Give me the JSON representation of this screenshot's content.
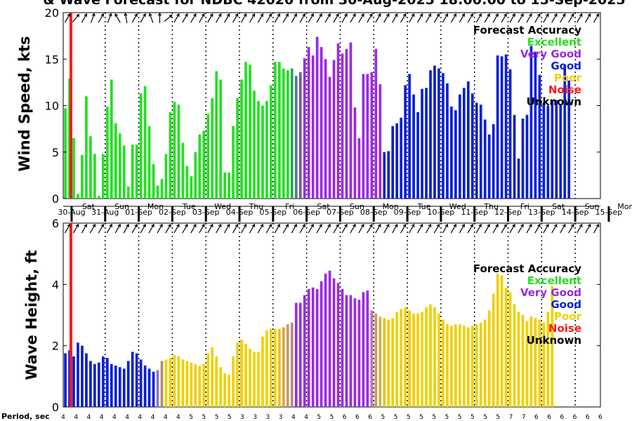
{
  "chart_data": {
    "title": "& Wave Forecast for NDBC 42020 from 30-Aug-2025 18:00:00 to 15-Sep-2025",
    "type": "bar",
    "x_start": "30-Aug-2025 18:00",
    "x_step_hours": 3,
    "days": [
      {
        "weekday": "Sat",
        "date": "30-Aug"
      },
      {
        "weekday": "Sun",
        "date": "31-Aug"
      },
      {
        "weekday": "Mon",
        "date": "01-Sep"
      },
      {
        "weekday": "Tue",
        "date": "02-Sep"
      },
      {
        "weekday": "Wed",
        "date": "03-Sep"
      },
      {
        "weekday": "Thu",
        "date": "04-Sep"
      },
      {
        "weekday": "Fri",
        "date": "05-Sep"
      },
      {
        "weekday": "Sat",
        "date": "06-Sep"
      },
      {
        "weekday": "Sun",
        "date": "07-Sep"
      },
      {
        "weekday": "Mon",
        "date": "08-Sep"
      },
      {
        "weekday": "Tue",
        "date": "09-Sep"
      },
      {
        "weekday": "Wed",
        "date": "10-Sep"
      },
      {
        "weekday": "Thu",
        "date": "11-Sep"
      },
      {
        "weekday": "Fri",
        "date": "12-Sep"
      },
      {
        "weekday": "Sat",
        "date": "13-Sep"
      },
      {
        "weekday": "Sun",
        "date": "14-Sep"
      },
      {
        "weekday": "Mon",
        "date": "15-Sep"
      }
    ],
    "noise_marker": "30-Aug-2025 21:00",
    "legend": {
      "title": "Forecast Accuracy",
      "items": [
        {
          "label": "Excellent",
          "color": "#22e022"
        },
        {
          "label": "Very Good",
          "color": "#9a2be0"
        },
        {
          "label": "Good",
          "color": "#0b1fd6"
        },
        {
          "label": "Poor",
          "color": "#f0d000"
        },
        {
          "label": "Noise",
          "color": "#ff1a1a"
        },
        {
          "label": "Unknown",
          "color": "#000000"
        }
      ]
    },
    "panels": [
      {
        "ylabel": "Wind Speed, kts",
        "ylim": [
          0,
          20
        ],
        "yticks": [
          0,
          5,
          10,
          15,
          20
        ],
        "segments": [
          {
            "category": "Excellent",
            "values": [
              9.7,
              12.9,
              6.5,
              0.5,
              4.7,
              11.0,
              6.7,
              4.8,
              0.3,
              4.8,
              9.9,
              12.8,
              8.1,
              7.0,
              5.7,
              1.3,
              5.8,
              5.8,
              11.3,
              12.1,
              7.8,
              3.7,
              1.4,
              2.1,
              4.8,
              9.3,
              10.4,
              10.1,
              6.0,
              3.5,
              2.4,
              5.0,
              6.9,
              7.3,
              9.1,
              10.8,
              13.7,
              12.8,
              2.8,
              2.8,
              7.8,
              10.8,
              12.8,
              14.7,
              14.4,
              11.6,
              10.5,
              10.0,
              10.5,
              12.2,
              14.7,
              14.7,
              14.0,
              13.8
            ]
          },
          {
            "category": "Good",
            "colors": [
              "#2ba25e",
              "#4a7e8a",
              "#6e55b0"
            ],
            "values": [
              14.0,
              13.2,
              13.6
            ]
          },
          {
            "category": "Very Good",
            "values": [
              15.1,
              16.3,
              15.4,
              17.4,
              16.3,
              15.0,
              13.1,
              14.9,
              16.7,
              15.6,
              16.1,
              16.8,
              9.8,
              6.5,
              13.4,
              13.4,
              13.6,
              16.1,
              12.3
            ]
          },
          {
            "category": "Good",
            "values": [
              5.0,
              5.1,
              7.8,
              8.1,
              8.7,
              12.2,
              13.4,
              11.2,
              9.3,
              11.8,
              11.9,
              13.8,
              14.3,
              14.0,
              13.5,
              12.4,
              9.9,
              9.5,
              11.2,
              11.9,
              12.6,
              11.3,
              10.3,
              10.1,
              8.5,
              6.9,
              8.0,
              15.4,
              15.3,
              15.5,
              13.9,
              9.0,
              4.3,
              8.6,
              9.0,
              16.4,
              15.8,
              13.3,
              10.3,
              10.0,
              10.6,
              10.6,
              10.1,
              14.4,
              12.7
            ]
          }
        ]
      },
      {
        "ylabel": "Wave Height, ft",
        "ylim": [
          0,
          6
        ],
        "yticks": [
          0,
          2,
          4,
          6
        ],
        "segments": [
          {
            "category": "Good",
            "values": [
              1.75,
              1.85,
              1.65,
              2.1,
              2.0,
              1.75,
              1.5,
              1.4,
              1.45,
              1.65,
              1.6,
              1.4,
              1.35,
              1.3,
              1.25,
              1.5,
              1.8,
              1.75,
              1.55,
              1.35,
              1.25,
              1.15
            ]
          },
          {
            "category": "Poor",
            "colors": [
              "#8a7ab0",
              "#a8906a"
            ],
            "values": [
              1.2,
              1.5
            ]
          },
          {
            "category": "Poor",
            "values": [
              1.55,
              1.6,
              1.7,
              1.65,
              1.55,
              1.5,
              1.45,
              1.4,
              1.35,
              1.4,
              1.75,
              1.95,
              1.65,
              1.3,
              1.1,
              1.05,
              1.65,
              2.1,
              2.2,
              2.05,
              1.9,
              1.8,
              1.8,
              2.3,
              2.5,
              2.55,
              2.55
            ]
          },
          {
            "category": "Poor",
            "colors": [
              "#e8c022",
              "#d6a84a",
              "#c69a6a",
              "#b38c88"
            ],
            "values": [
              2.55,
              2.6,
              2.7,
              2.75
            ]
          },
          {
            "category": "Very Good",
            "values": [
              3.4,
              3.4,
              3.65,
              3.85,
              3.9,
              3.85,
              4.1,
              4.35,
              4.45,
              4.2,
              4.05,
              3.85,
              3.65,
              3.65,
              3.55,
              3.5,
              3.75,
              3.8
            ]
          },
          {
            "category": "Poor",
            "colors": [
              "#b07ab8",
              "#c69a6a",
              "#d6ae4a",
              "#e6c42a"
            ],
            "values": [
              3.15,
              3.05,
              2.95,
              2.9
            ]
          },
          {
            "category": "Poor",
            "values": [
              2.85,
              2.9,
              3.1,
              3.2,
              3.25,
              3.15,
              3.05,
              3.05,
              3.1,
              3.25,
              3.35,
              3.25,
              3.05,
              2.85,
              2.7,
              2.65,
              2.7,
              2.7,
              2.65,
              2.6,
              2.65,
              2.7,
              2.75,
              2.85,
              3.15,
              3.7,
              4.35,
              4.3,
              3.9,
              3.75,
              3.35,
              3.1,
              3.0,
              2.8,
              2.95,
              2.9,
              2.85,
              2.75,
              3.1,
              3.95
            ]
          }
        ]
      }
    ],
    "period": {
      "label": "Period, sec",
      "values": [
        "4",
        "4",
        "4",
        "4",
        "4",
        "4",
        "4",
        "4",
        "4",
        "4",
        "5",
        "5",
        "5",
        "5",
        "3",
        "3",
        "3",
        "3",
        "4",
        "4",
        "5",
        "5",
        "6",
        "6",
        "6",
        "5",
        "5",
        "5",
        "5",
        "5",
        "5",
        "5",
        "5",
        "5",
        "5",
        "7",
        "7",
        "6",
        "6",
        "6",
        "6",
        "6",
        "6"
      ]
    },
    "wind_arrow_dir_deg": [
      300,
      300,
      310,
      300,
      300,
      300,
      290,
      300,
      300,
      300,
      290,
      300,
      240,
      300,
      260,
      320,
      300,
      300,
      300,
      320,
      250,
      300,
      270,
      300,
      320,
      300,
      300,
      300,
      300,
      300,
      300,
      310,
      300,
      300,
      300,
      300,
      300,
      300,
      300,
      310,
      300,
      300,
      300,
      300,
      300,
      300,
      300,
      300,
      300,
      300,
      300,
      300,
      300,
      300,
      300,
      300,
      300,
      300,
      300,
      300,
      300,
      300,
      300,
      300,
      300,
      300,
      300,
      300,
      300,
      300,
      300,
      300,
      300,
      300,
      300,
      300,
      300,
      300,
      300,
      300,
      300,
      300,
      300,
      300,
      300,
      300,
      300,
      300,
      300,
      300,
      300,
      300,
      300,
      300,
      300,
      300,
      300,
      300,
      300,
      300,
      300,
      300,
      300,
      300,
      300,
      300,
      300,
      300,
      300,
      300,
      300,
      300,
      300,
      300,
      300,
      300,
      300,
      300,
      300,
      300,
      300,
      300,
      300,
      300,
      300,
      300,
      300,
      300
    ],
    "wave_arrow_dir_deg": [
      300,
      300,
      300,
      300,
      300,
      300,
      300,
      300,
      300,
      300,
      300,
      300,
      300,
      300,
      300,
      300,
      300,
      300,
      300,
      300,
      300,
      300,
      300,
      300,
      300,
      300,
      300,
      300,
      300,
      300,
      300,
      300,
      300,
      300,
      300,
      300,
      300,
      300,
      300,
      300,
      300,
      300,
      300,
      300,
      300,
      300,
      300,
      300,
      300,
      300,
      300,
      300,
      300,
      300,
      300,
      300,
      300,
      300,
      300,
      300,
      300,
      300,
      300,
      300,
      300,
      300,
      300,
      300,
      300,
      300,
      300,
      300,
      300,
      300,
      300,
      300,
      300,
      300,
      300,
      300,
      300,
      300,
      300,
      300,
      300,
      300,
      300,
      300,
      300,
      300,
      300,
      300,
      300,
      300,
      300,
      300,
      300,
      300,
      300,
      300,
      300,
      300,
      300,
      300,
      300,
      300,
      300,
      300,
      300,
      300,
      300,
      300,
      300,
      300,
      300,
      300,
      300,
      300,
      300,
      300,
      300,
      300,
      300,
      300,
      300,
      300,
      300
    ]
  }
}
